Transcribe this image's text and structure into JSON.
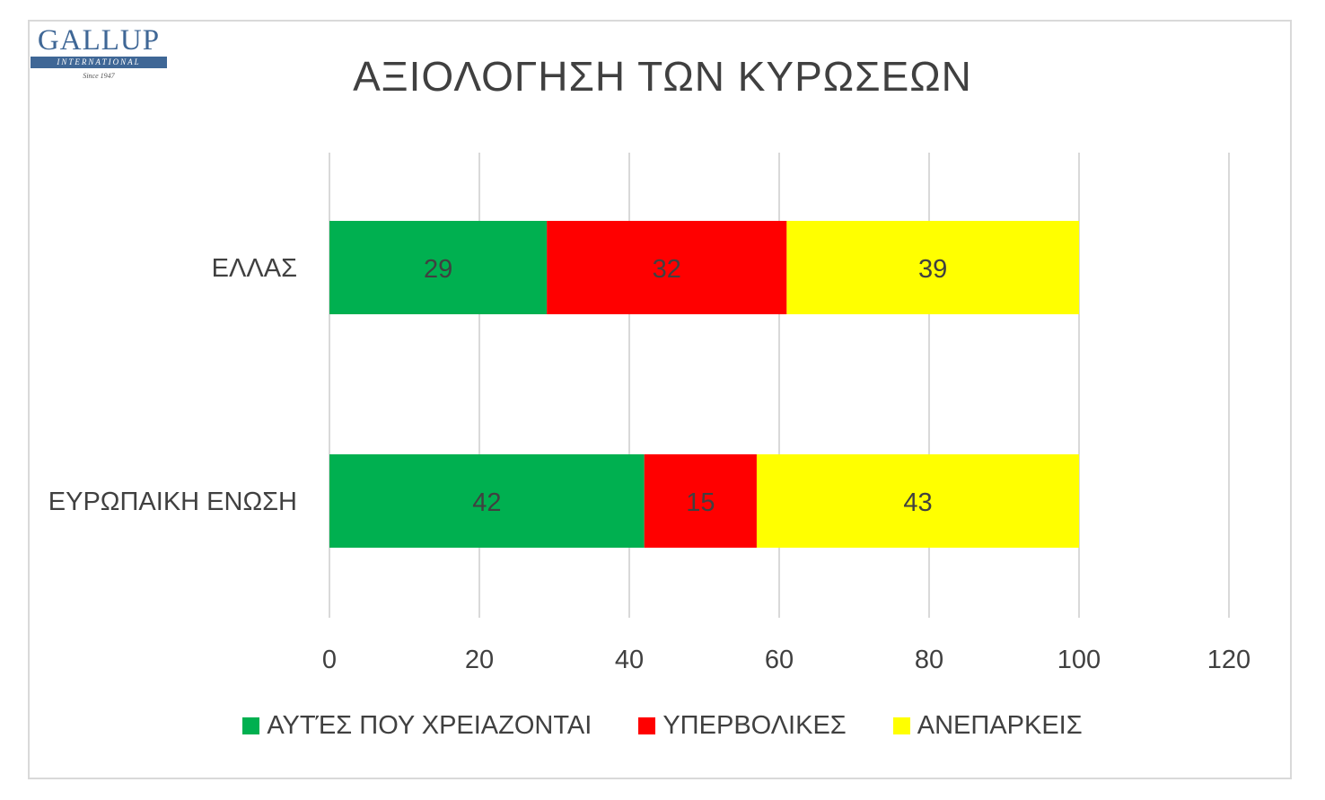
{
  "logo": {
    "word": "GALLUP",
    "band": "INTERNATIONAL",
    "since": "Since 1947"
  },
  "chart_data": {
    "type": "bar",
    "orientation": "horizontal",
    "stacked": true,
    "title": "ΑΞΙΟΛΟΓΗΣΗ ΤΩΝ ΚΥΡΩΣΕΩΝ",
    "categories": [
      "ΕΛΛΑΣ",
      "ΕΥΡΩΠΑΙΚΗ ΕΝΩΣΗ"
    ],
    "series": [
      {
        "name": "ΑΥΤΈΣ ΠΟΥ ΧΡΕΙΑΖΟΝΤΑΙ",
        "color": "#00b050",
        "values": [
          29,
          42
        ]
      },
      {
        "name": "ΥΠΕΡΒΟΛΙΚΕΣ",
        "color": "#ff0000",
        "values": [
          32,
          15
        ]
      },
      {
        "name": "ΑΝΕΠΑΡΚΕΙΣ",
        "color": "#ffff00",
        "values": [
          39,
          43
        ]
      }
    ],
    "xlim": [
      0,
      120
    ],
    "xticks": [
      "0",
      "20",
      "40",
      "60",
      "80",
      "100",
      "120"
    ],
    "xlabel": "",
    "ylabel": "",
    "grid": true,
    "legend": "bottom",
    "data_labels": true
  }
}
